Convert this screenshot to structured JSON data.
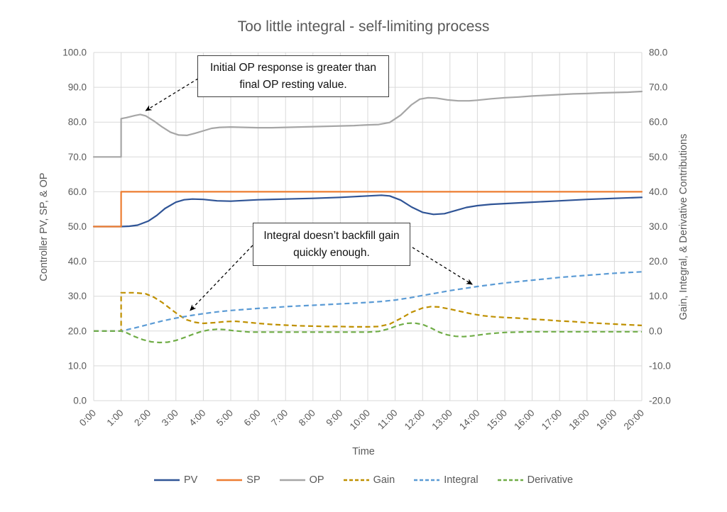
{
  "title": "Too little integral - self-limiting process",
  "chart_data": {
    "type": "line",
    "title": "Too little integral - self-limiting process",
    "grid": true,
    "legend_position": "bottom",
    "x_axis": {
      "label": "Time",
      "range": [
        0,
        20
      ],
      "ticks": [
        "0:00",
        "1:00",
        "2:00",
        "3:00",
        "4:00",
        "5:00",
        "6:00",
        "7:00",
        "8:00",
        "9:00",
        "10:00",
        "11:00",
        "12:00",
        "13:00",
        "14:00",
        "15:00",
        "16:00",
        "17:00",
        "18:00",
        "19:00",
        "20:00"
      ]
    },
    "y_left": {
      "label": "Controller PV, SP, & OP",
      "range": [
        0,
        100
      ],
      "step": 10,
      "ticks": [
        "0.0",
        "10.0",
        "20.0",
        "30.0",
        "40.0",
        "50.0",
        "60.0",
        "70.0",
        "80.0",
        "90.0",
        "100.0"
      ]
    },
    "y_right": {
      "label": "Gain, Integral, & Derivative Contributions",
      "range": [
        -20,
        80
      ],
      "step": 10,
      "ticks": [
        "-20.0",
        "-10.0",
        "0.0",
        "10.0",
        "20.0",
        "30.0",
        "40.0",
        "50.0",
        "60.0",
        "70.0",
        "80.0"
      ]
    },
    "colors": {
      "grid": "#d9d9d9",
      "axis_text": "#595959",
      "pv": "#2f5496",
      "sp": "#ed7d31",
      "op": "#a6a6a6",
      "gain": "#bf9000",
      "integral": "#5b9bd5",
      "derivative": "#70ad47"
    },
    "series": [
      {
        "name": "PV",
        "axis": "left",
        "color": "#2f5496",
        "dashed": false,
        "points": [
          [
            0,
            50
          ],
          [
            1,
            50
          ],
          [
            1.3,
            50.1
          ],
          [
            1.6,
            50.4
          ],
          [
            2,
            51.6
          ],
          [
            2.3,
            53.2
          ],
          [
            2.6,
            55.2
          ],
          [
            3,
            57
          ],
          [
            3.3,
            57.7
          ],
          [
            3.6,
            57.9
          ],
          [
            4,
            57.8
          ],
          [
            4.5,
            57.4
          ],
          [
            5,
            57.3
          ],
          [
            5.5,
            57.5
          ],
          [
            6,
            57.7
          ],
          [
            7,
            57.9
          ],
          [
            8,
            58.1
          ],
          [
            9,
            58.4
          ],
          [
            9.5,
            58.6
          ],
          [
            10,
            58.8
          ],
          [
            10.5,
            59
          ],
          [
            10.8,
            58.8
          ],
          [
            11.2,
            57.6
          ],
          [
            11.6,
            55.6
          ],
          [
            12,
            54.1
          ],
          [
            12.4,
            53.5
          ],
          [
            12.8,
            53.7
          ],
          [
            13.2,
            54.6
          ],
          [
            13.6,
            55.5
          ],
          [
            14,
            56
          ],
          [
            14.5,
            56.4
          ],
          [
            15,
            56.6
          ],
          [
            16,
            57
          ],
          [
            17,
            57.4
          ],
          [
            18,
            57.8
          ],
          [
            19,
            58.1
          ],
          [
            20,
            58.4
          ]
        ]
      },
      {
        "name": "SP",
        "axis": "left",
        "color": "#ed7d31",
        "dashed": false,
        "points": [
          [
            0,
            50
          ],
          [
            1,
            50
          ],
          [
            1,
            60
          ],
          [
            20,
            60
          ]
        ]
      },
      {
        "name": "OP",
        "axis": "left",
        "color": "#a6a6a6",
        "dashed": false,
        "points": [
          [
            0,
            70
          ],
          [
            1,
            70
          ],
          [
            1,
            81
          ],
          [
            1.2,
            81.3
          ],
          [
            1.5,
            81.9
          ],
          [
            1.7,
            82.2
          ],
          [
            1.9,
            81.8
          ],
          [
            2.2,
            80.3
          ],
          [
            2.5,
            78.6
          ],
          [
            2.8,
            77.1
          ],
          [
            3.1,
            76.3
          ],
          [
            3.4,
            76.2
          ],
          [
            3.7,
            76.8
          ],
          [
            4,
            77.5
          ],
          [
            4.3,
            78.2
          ],
          [
            4.6,
            78.5
          ],
          [
            5,
            78.6
          ],
          [
            5.5,
            78.5
          ],
          [
            6,
            78.4
          ],
          [
            6.5,
            78.4
          ],
          [
            7,
            78.5
          ],
          [
            7.5,
            78.6
          ],
          [
            8,
            78.7
          ],
          [
            8.5,
            78.8
          ],
          [
            9,
            78.9
          ],
          [
            9.5,
            79
          ],
          [
            10,
            79.2
          ],
          [
            10.4,
            79.3
          ],
          [
            10.8,
            79.9
          ],
          [
            11.2,
            82
          ],
          [
            11.6,
            85
          ],
          [
            11.9,
            86.6
          ],
          [
            12.2,
            87
          ],
          [
            12.5,
            86.9
          ],
          [
            12.9,
            86.4
          ],
          [
            13.3,
            86.1
          ],
          [
            13.7,
            86.1
          ],
          [
            14,
            86.3
          ],
          [
            14.5,
            86.7
          ],
          [
            15,
            87
          ],
          [
            15.5,
            87.2
          ],
          [
            16,
            87.5
          ],
          [
            16.5,
            87.7
          ],
          [
            17,
            87.9
          ],
          [
            17.5,
            88.1
          ],
          [
            18,
            88.2
          ],
          [
            18.5,
            88.4
          ],
          [
            19,
            88.5
          ],
          [
            19.5,
            88.6
          ],
          [
            20,
            88.8
          ]
        ]
      },
      {
        "name": "Gain",
        "axis": "right",
        "color": "#bf9000",
        "dashed": true,
        "points": [
          [
            0,
            0
          ],
          [
            1,
            0
          ],
          [
            1,
            11
          ],
          [
            1.5,
            11
          ],
          [
            1.9,
            10.7
          ],
          [
            2.2,
            9.7
          ],
          [
            2.5,
            8.2
          ],
          [
            2.8,
            6.4
          ],
          [
            3.1,
            4.6
          ],
          [
            3.4,
            3.2
          ],
          [
            3.7,
            2.5
          ],
          [
            4,
            2.2
          ],
          [
            4.4,
            2.4
          ],
          [
            4.8,
            2.7
          ],
          [
            5.2,
            2.8
          ],
          [
            5.6,
            2.5
          ],
          [
            6,
            2.2
          ],
          [
            6.5,
            1.9
          ],
          [
            7,
            1.7
          ],
          [
            7.5,
            1.5
          ],
          [
            8,
            1.4
          ],
          [
            8.5,
            1.3
          ],
          [
            9,
            1.3
          ],
          [
            9.5,
            1.2
          ],
          [
            10,
            1.2
          ],
          [
            10.4,
            1.3
          ],
          [
            10.8,
            2
          ],
          [
            11.2,
            3.6
          ],
          [
            11.6,
            5.4
          ],
          [
            12,
            6.6
          ],
          [
            12.3,
            7
          ],
          [
            12.6,
            6.9
          ],
          [
            13,
            6.3
          ],
          [
            13.4,
            5.6
          ],
          [
            13.8,
            4.9
          ],
          [
            14.2,
            4.4
          ],
          [
            14.6,
            4.1
          ],
          [
            15,
            3.9
          ],
          [
            15.5,
            3.7
          ],
          [
            16,
            3.4
          ],
          [
            16.5,
            3.2
          ],
          [
            17,
            2.9
          ],
          [
            17.5,
            2.7
          ],
          [
            18,
            2.4
          ],
          [
            18.5,
            2.2
          ],
          [
            19,
            2
          ],
          [
            19.5,
            1.8
          ],
          [
            20,
            1.6
          ]
        ]
      },
      {
        "name": "Integral",
        "axis": "right",
        "color": "#5b9bd5",
        "dashed": true,
        "points": [
          [
            0,
            0
          ],
          [
            1,
            0
          ],
          [
            1.5,
            0.9
          ],
          [
            2,
            1.9
          ],
          [
            2.5,
            2.9
          ],
          [
            3,
            3.7
          ],
          [
            3.5,
            4.4
          ],
          [
            4,
            5
          ],
          [
            4.5,
            5.5
          ],
          [
            5,
            5.9
          ],
          [
            5.5,
            6.2
          ],
          [
            6,
            6.5
          ],
          [
            6.5,
            6.7
          ],
          [
            7,
            7
          ],
          [
            7.5,
            7.2
          ],
          [
            8,
            7.4
          ],
          [
            8.5,
            7.6
          ],
          [
            9,
            7.8
          ],
          [
            9.5,
            8
          ],
          [
            10,
            8.2
          ],
          [
            10.5,
            8.5
          ],
          [
            11,
            8.9
          ],
          [
            11.5,
            9.5
          ],
          [
            12,
            10.2
          ],
          [
            12.5,
            10.9
          ],
          [
            13,
            11.6
          ],
          [
            13.5,
            12.2
          ],
          [
            14,
            12.8
          ],
          [
            14.5,
            13.3
          ],
          [
            15,
            13.8
          ],
          [
            15.5,
            14.2
          ],
          [
            16,
            14.6
          ],
          [
            16.5,
            15
          ],
          [
            17,
            15.4
          ],
          [
            17.5,
            15.7
          ],
          [
            18,
            16
          ],
          [
            18.5,
            16.3
          ],
          [
            19,
            16.6
          ],
          [
            19.5,
            16.8
          ],
          [
            20,
            17
          ]
        ]
      },
      {
        "name": "Derivative",
        "axis": "right",
        "color": "#70ad47",
        "dashed": true,
        "points": [
          [
            0,
            0
          ],
          [
            1,
            0
          ],
          [
            1.2,
            -0.5
          ],
          [
            1.5,
            -1.6
          ],
          [
            1.8,
            -2.5
          ],
          [
            2.1,
            -3.1
          ],
          [
            2.4,
            -3.3
          ],
          [
            2.7,
            -3.2
          ],
          [
            3,
            -2.7
          ],
          [
            3.3,
            -1.9
          ],
          [
            3.6,
            -1
          ],
          [
            3.9,
            -0.2
          ],
          [
            4.2,
            0.3
          ],
          [
            4.5,
            0.5
          ],
          [
            4.8,
            0.4
          ],
          [
            5.1,
            0.1
          ],
          [
            5.4,
            -0.1
          ],
          [
            5.7,
            -0.3
          ],
          [
            6,
            -0.3
          ],
          [
            7,
            -0.3
          ],
          [
            8,
            -0.3
          ],
          [
            9,
            -0.3
          ],
          [
            10,
            -0.3
          ],
          [
            10.4,
            -0.1
          ],
          [
            10.8,
            0.7
          ],
          [
            11.1,
            1.6
          ],
          [
            11.4,
            2.2
          ],
          [
            11.7,
            2.3
          ],
          [
            12,
            1.9
          ],
          [
            12.3,
            0.9
          ],
          [
            12.6,
            -0.3
          ],
          [
            12.9,
            -1.1
          ],
          [
            13.2,
            -1.5
          ],
          [
            13.5,
            -1.6
          ],
          [
            13.8,
            -1.4
          ],
          [
            14.1,
            -1.1
          ],
          [
            14.4,
            -0.8
          ],
          [
            14.7,
            -0.6
          ],
          [
            15,
            -0.4
          ],
          [
            15.5,
            -0.3
          ],
          [
            16,
            -0.2
          ],
          [
            17,
            -0.2
          ],
          [
            18,
            -0.2
          ],
          [
            19,
            -0.2
          ],
          [
            20,
            -0.2
          ]
        ]
      }
    ],
    "annotations": [
      {
        "text": "Initial OP response is greater than final OP resting value.",
        "arrows": [
          {
            "from": [
              3.81,
              92.5
            ],
            "to": [
              1.9,
              83.3
            ]
          }
        ]
      },
      {
        "text": "Integral doesn’t backfill gain quickly enough.",
        "arrows": [
          {
            "from": [
              5.8,
              44.6
            ],
            "to": [
              3.52,
              25.9
            ]
          },
          {
            "from": [
              11.63,
              44.0
            ],
            "to": [
              13.81,
              33.4
            ]
          }
        ]
      }
    ]
  }
}
